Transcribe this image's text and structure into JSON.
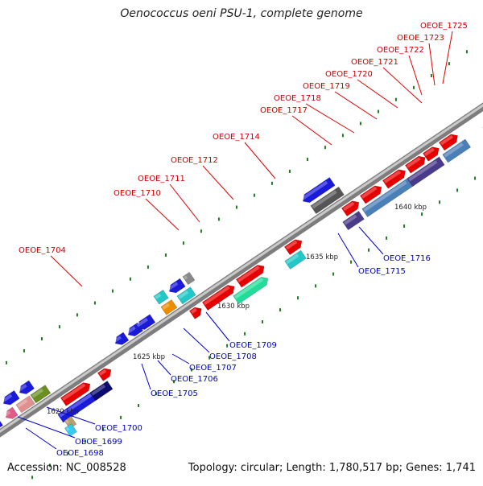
{
  "header": {
    "title": "Oenococcus oeni PSU-1, complete genome"
  },
  "footer": {
    "accession": "Accession: NC_008528",
    "summary": "Topology: circular; Length: 1,780,517 bp; Genes: 1,741"
  },
  "scale_labels": [
    "1620 kbp",
    "1625 kbp",
    "1630 kbp",
    "1635 kbp",
    "1640 kbp"
  ],
  "colors": {
    "label_above": "#cc0000",
    "label_below": "#0000cc",
    "tick": "#1f7a1f",
    "backbone": "#8a8a8a"
  },
  "genes_above": [
    "OEOE_1704",
    "OEOE_1710",
    "OEOE_1711",
    "OEOE_1712",
    "OEOE_1714",
    "OEOE_1717",
    "OEOE_1718",
    "OEOE_1719",
    "OEOE_1720",
    "OEOE_1721",
    "OEOE_1722",
    "OEOE_1723",
    "OEOE_1725"
  ],
  "genes_below": [
    "OEOE_1698",
    "OEOE_1699",
    "OEOE_1700",
    "OEOE_1705",
    "OEOE_1706",
    "OEOE_1707",
    "OEOE_1708",
    "OEOE_1709",
    "OEOE_1715",
    "OEOE_1716"
  ]
}
